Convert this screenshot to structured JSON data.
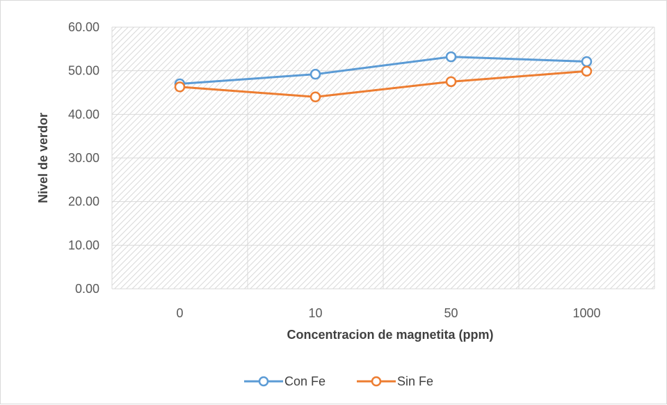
{
  "chart_data": {
    "type": "line",
    "title": "",
    "xlabel": "Concentracion de magnetita (ppm)",
    "ylabel": "Nivel de  verdor",
    "categories": [
      "0",
      "10",
      "50",
      "1000"
    ],
    "ylim": [
      0,
      60
    ],
    "yticks": [
      "0.00",
      "10.00",
      "20.00",
      "30.00",
      "40.00",
      "50.00",
      "60.00"
    ],
    "grid": true,
    "legend_position": "bottom",
    "plot_background": "hatched",
    "series": [
      {
        "name": "Con Fe",
        "color": "#5b9bd5",
        "values": [
          47.0,
          49.2,
          53.2,
          52.1
        ]
      },
      {
        "name": "Sin Fe",
        "color": "#ed7d31",
        "values": [
          46.3,
          44.0,
          47.5,
          49.9
        ]
      }
    ]
  }
}
